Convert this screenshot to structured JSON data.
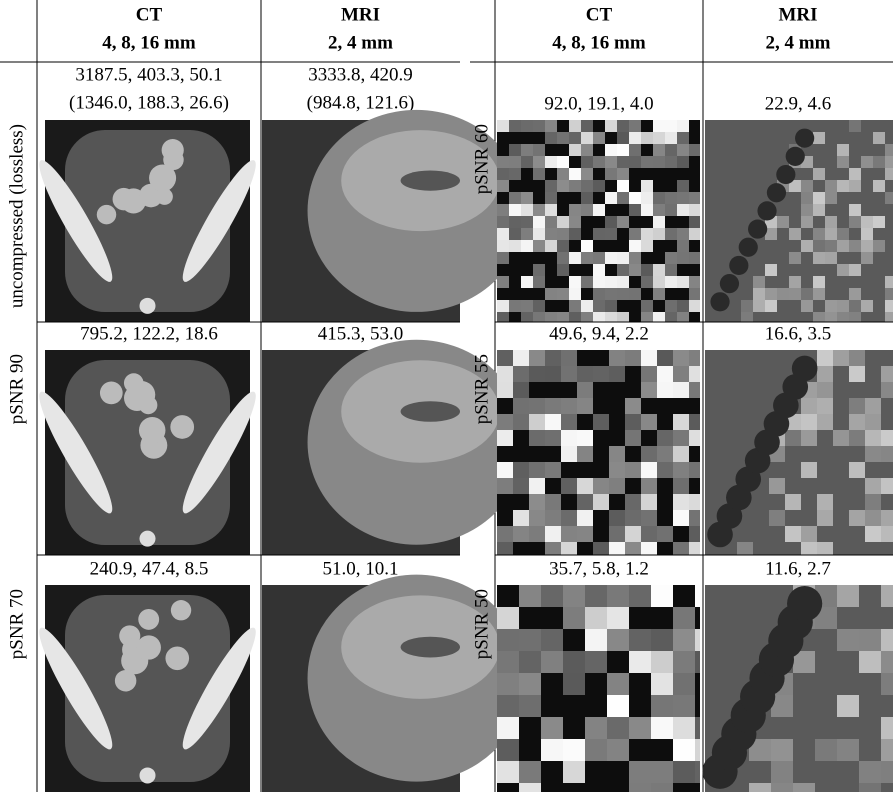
{
  "left": {
    "header": [
      {
        "modality": "CT",
        "sizes": "4, 8, 16 mm"
      },
      {
        "modality": "MRI",
        "sizes": "2, 4 mm"
      }
    ],
    "rows": [
      {
        "label": "uncompressed (lossless)",
        "ct": [
          "3187.5, 403.3, 50.1",
          "(1346.0, 188.3, 26.6)"
        ],
        "mri": [
          "3333.8, 420.9",
          "(984.8, 121.6)"
        ]
      },
      {
        "label": "pSNR 90",
        "ct": [
          "795.2, 122.2, 18.6"
        ],
        "mri": [
          "415.3, 53.0"
        ]
      },
      {
        "label": "pSNR 70",
        "ct": [
          "240.9, 47.4, 8.5"
        ],
        "mri": [
          "51.0, 10.1"
        ]
      }
    ]
  },
  "right": {
    "header": [
      {
        "modality": "CT",
        "sizes": "4, 8, 16 mm"
      },
      {
        "modality": "MRI",
        "sizes": "2, 4 mm"
      }
    ],
    "rows": [
      {
        "label": "pSNR 60",
        "ct": [
          "92.0, 19.1, 4.0"
        ],
        "mri": [
          "22.9, 4.6"
        ]
      },
      {
        "label": "pSNR 55",
        "ct": [
          "49.6, 9.4, 2.2"
        ],
        "mri": [
          "16.6, 3.5"
        ]
      },
      {
        "label": "pSNR 50",
        "ct": [
          "35.7, 5.8, 1.2"
        ],
        "mri": [
          "11.6, 2.7"
        ]
      }
    ]
  }
}
